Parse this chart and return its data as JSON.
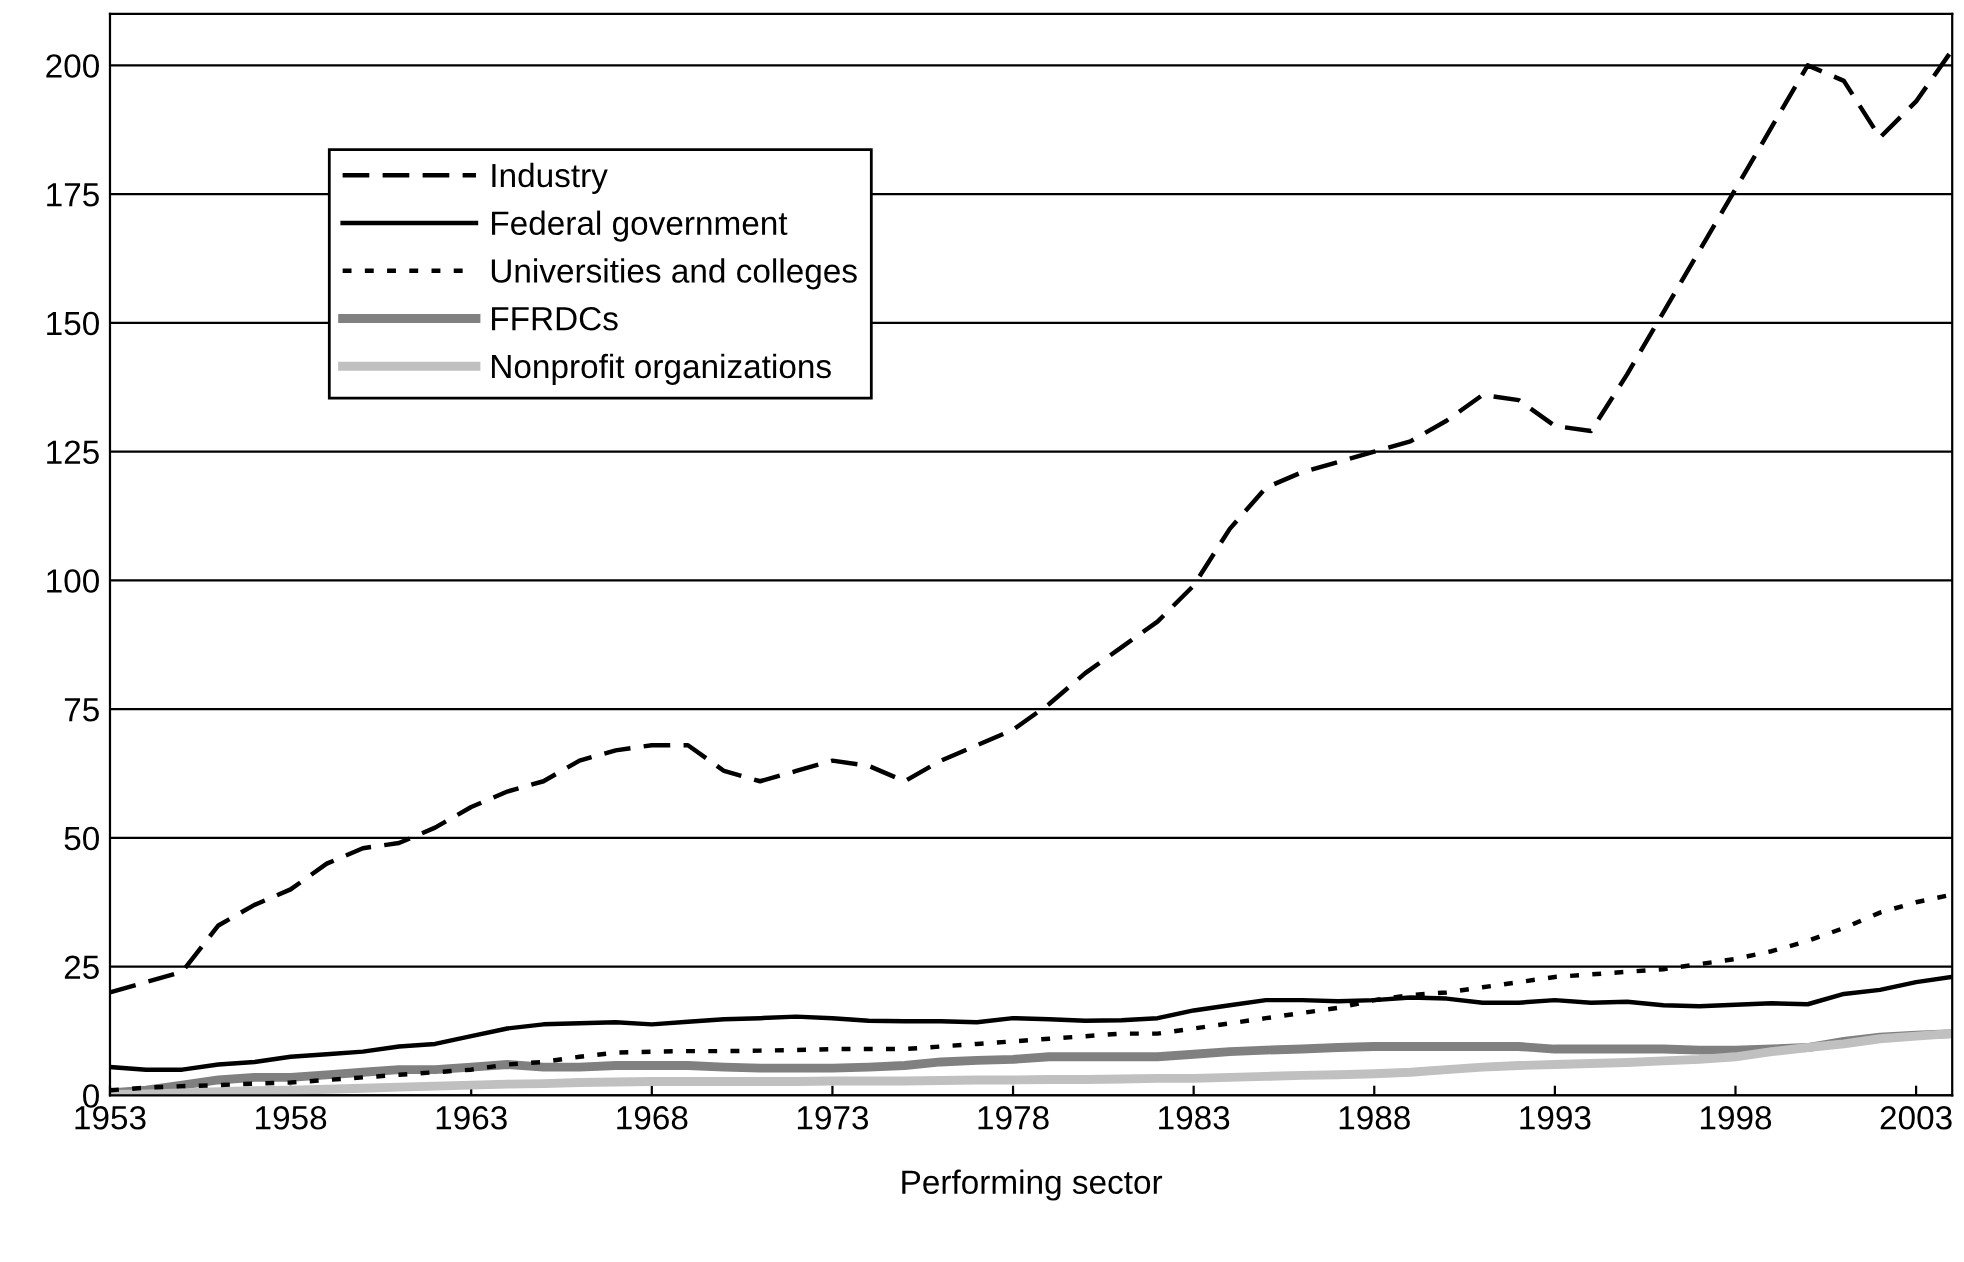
{
  "chart_data": {
    "type": "line",
    "xlabel": "Performing sector",
    "x": [
      1953,
      1954,
      1955,
      1956,
      1957,
      1958,
      1959,
      1960,
      1961,
      1962,
      1963,
      1964,
      1965,
      1966,
      1967,
      1968,
      1969,
      1970,
      1971,
      1972,
      1973,
      1974,
      1975,
      1976,
      1977,
      1978,
      1979,
      1980,
      1981,
      1982,
      1983,
      1984,
      1985,
      1986,
      1987,
      1988,
      1989,
      1990,
      1991,
      1992,
      1993,
      1994,
      1995,
      1996,
      1997,
      1998,
      1999,
      2000,
      2001,
      2002,
      2003,
      2004
    ],
    "series": [
      {
        "name": "Industry",
        "color": "#000000",
        "line_style": "dashed",
        "values": [
          20,
          22,
          24,
          33,
          37,
          40,
          45,
          48,
          49,
          52,
          56,
          59,
          61,
          65,
          67,
          68,
          68,
          63,
          61,
          63,
          65,
          64,
          61,
          65,
          68,
          71,
          76,
          82,
          87,
          92,
          99,
          110,
          118,
          121,
          123,
          125,
          127,
          131,
          136,
          135,
          130,
          129,
          140,
          152,
          164,
          176,
          188,
          200,
          197,
          186,
          193,
          203
        ]
      },
      {
        "name": "Federal government",
        "color": "#000000",
        "line_style": "solid",
        "values": [
          5.5,
          5,
          5,
          6,
          6.5,
          7.5,
          8,
          8.5,
          9.5,
          10,
          11.5,
          13,
          13.8,
          14,
          14.2,
          13.8,
          14.3,
          14.8,
          15,
          15.3,
          15,
          14.5,
          14.4,
          14.4,
          14.2,
          15,
          14.8,
          14.5,
          14.6,
          15,
          16.5,
          17.5,
          18.5,
          18.5,
          18.3,
          18.5,
          19,
          18.8,
          18,
          18,
          18.5,
          18,
          18.2,
          17.5,
          17.3,
          17.6,
          17.9,
          17.7,
          19.7,
          20.5,
          22,
          23
        ]
      },
      {
        "name": "Universities and colleges",
        "color": "#000000",
        "line_style": "dotted",
        "values": [
          1,
          1.5,
          1.8,
          2,
          2.3,
          2.5,
          3,
          3.5,
          4,
          4.5,
          5,
          6,
          6.5,
          7.5,
          8.3,
          8.5,
          8.6,
          8.6,
          8.7,
          8.8,
          9,
          9,
          9,
          9.5,
          10,
          10.5,
          11,
          11.5,
          12,
          12,
          13,
          14,
          15,
          16,
          17,
          18.5,
          19.5,
          20,
          21,
          22,
          23,
          23.5,
          24,
          24.5,
          25.5,
          26.5,
          28,
          30,
          32.5,
          35.5,
          37.5,
          39
        ]
      },
      {
        "name": "FFRDCs",
        "color": "#808080",
        "line_style": "solid",
        "values": [
          0.5,
          1,
          2,
          3,
          3.5,
          3.5,
          4,
          4.5,
          5,
          5,
          5.5,
          6,
          5.5,
          5.5,
          5.8,
          5.8,
          5.8,
          5.5,
          5.3,
          5.3,
          5.3,
          5.5,
          5.8,
          6.5,
          6.8,
          7,
          7.5,
          7.5,
          7.5,
          7.5,
          8,
          8.5,
          8.8,
          9,
          9.3,
          9.5,
          9.5,
          9.5,
          9.5,
          9.5,
          9,
          9,
          9,
          9,
          8.8,
          8.8,
          9,
          9.3,
          10.5,
          11.3,
          11.7,
          12
        ]
      },
      {
        "name": "Nonprofit organizations",
        "color": "#c0c0c0",
        "line_style": "solid",
        "values": [
          0.2,
          0.3,
          0.5,
          0.7,
          0.9,
          1,
          1.2,
          1.4,
          1.6,
          1.8,
          2,
          2.2,
          2.3,
          2.5,
          2.6,
          2.7,
          2.7,
          2.7,
          2.7,
          2.7,
          2.8,
          2.8,
          2.8,
          2.9,
          3,
          3,
          3.1,
          3.1,
          3.2,
          3.3,
          3.3,
          3.5,
          3.7,
          3.9,
          4,
          4.2,
          4.5,
          5,
          5.5,
          5.8,
          6,
          6.2,
          6.4,
          6.7,
          7,
          7.5,
          8.5,
          9.3,
          10,
          11,
          11.5,
          12
        ]
      }
    ],
    "xlim": [
      1953,
      2004
    ],
    "xticks": [
      1953,
      1958,
      1963,
      1968,
      1973,
      1978,
      1983,
      1988,
      1993,
      1998,
      2003
    ],
    "ylim": [
      0,
      210
    ],
    "yticks": [
      0,
      25,
      50,
      75,
      100,
      125,
      150,
      175,
      200
    ],
    "grid": "y",
    "legend": "top left"
  }
}
